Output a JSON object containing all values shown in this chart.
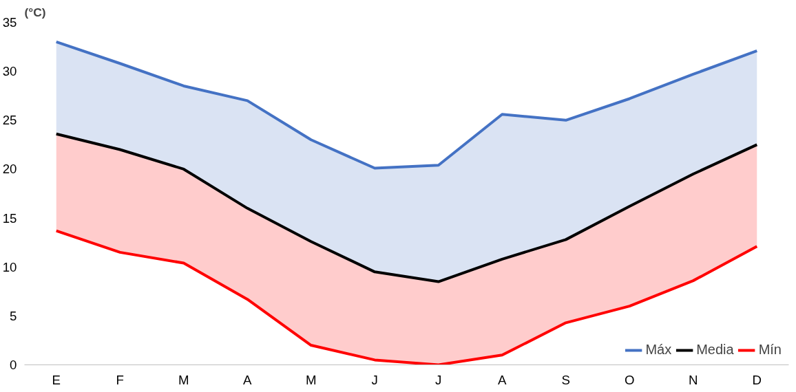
{
  "chart_data": {
    "type": "line",
    "ylabel": "(°C)",
    "categories": [
      "E",
      "F",
      "M",
      "A",
      "M",
      "J",
      "J",
      "A",
      "S",
      "O",
      "N",
      "D"
    ],
    "ylim": [
      0,
      35
    ],
    "yticks": [
      0,
      5,
      10,
      15,
      20,
      25,
      30,
      35
    ],
    "grid": false,
    "legend": "bottom right",
    "marker": "none",
    "line_style": "solid",
    "series": [
      {
        "name": "Máx",
        "color": "#4472c4",
        "values": [
          33,
          30.8,
          28.5,
          27,
          23,
          20.1,
          20.4,
          25.6,
          25,
          27.2,
          29.7,
          32.1
        ],
        "lower": [
          23.6,
          22,
          20,
          16,
          12.6,
          9.5,
          8.5,
          10.8,
          12.8,
          16.2,
          19.5,
          22.5
        ],
        "upper": [
          33,
          30.8,
          28.5,
          27,
          23,
          20.1,
          20.4,
          25.6,
          25,
          27.2,
          29.7,
          32.1
        ]
      },
      {
        "name": "Media",
        "color": "#000000",
        "values": [
          23.6,
          22,
          20,
          16,
          12.6,
          9.5,
          8.5,
          10.8,
          12.8,
          16.2,
          19.5,
          22.5
        ]
      },
      {
        "name": "Mín",
        "color": "#ff0000",
        "values": [
          13.7,
          11.5,
          10.4,
          6.7,
          2,
          0.5,
          0,
          1,
          4.3,
          6,
          8.6,
          12.1
        ],
        "lower": [
          13.7,
          11.5,
          10.4,
          6.7,
          2,
          0.5,
          0,
          1,
          4.3,
          6,
          8.6,
          12.1
        ],
        "upper": [
          23.6,
          22,
          20,
          16,
          12.6,
          9.5,
          8.5,
          10.8,
          12.8,
          16.2,
          19.5,
          22.5
        ]
      }
    ]
  }
}
